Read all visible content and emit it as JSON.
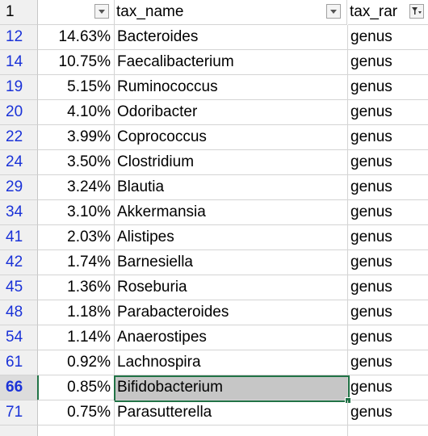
{
  "header": {
    "row_number": "1",
    "col_b": "",
    "col_c": "tax_name",
    "col_d": "tax_rar"
  },
  "rows": [
    {
      "row": "12",
      "pct": "14.63%",
      "name": "Bacteroides",
      "rank": "genus"
    },
    {
      "row": "14",
      "pct": "10.75%",
      "name": "Faecalibacterium",
      "rank": "genus"
    },
    {
      "row": "19",
      "pct": "5.15%",
      "name": "Ruminococcus",
      "rank": "genus"
    },
    {
      "row": "20",
      "pct": "4.10%",
      "name": "Odoribacter",
      "rank": "genus"
    },
    {
      "row": "22",
      "pct": "3.99%",
      "name": "Coprococcus",
      "rank": "genus"
    },
    {
      "row": "24",
      "pct": "3.50%",
      "name": "Clostridium",
      "rank": "genus"
    },
    {
      "row": "29",
      "pct": "3.24%",
      "name": "Blautia",
      "rank": "genus"
    },
    {
      "row": "34",
      "pct": "3.10%",
      "name": "Akkermansia",
      "rank": "genus"
    },
    {
      "row": "41",
      "pct": "2.03%",
      "name": "Alistipes",
      "rank": "genus"
    },
    {
      "row": "42",
      "pct": "1.74%",
      "name": "Barnesiella",
      "rank": "genus"
    },
    {
      "row": "45",
      "pct": "1.36%",
      "name": "Roseburia",
      "rank": "genus"
    },
    {
      "row": "48",
      "pct": "1.18%",
      "name": "Parabacteroides",
      "rank": "genus"
    },
    {
      "row": "54",
      "pct": "1.14%",
      "name": "Anaerostipes",
      "rank": "genus"
    },
    {
      "row": "61",
      "pct": "0.92%",
      "name": "Lachnospira",
      "rank": "genus"
    },
    {
      "row": "66",
      "pct": "0.85%",
      "name": "Bifidobacterium",
      "rank": "genus"
    },
    {
      "row": "71",
      "pct": "0.75%",
      "name": "Parasutterella",
      "rank": "genus"
    }
  ],
  "selected_row": "66",
  "colors": {
    "row_number_text": "#1a32d8",
    "selection_border": "#217346",
    "selected_cell_fill": "#c6c6c6",
    "header_fill": "#f0f0f0"
  }
}
